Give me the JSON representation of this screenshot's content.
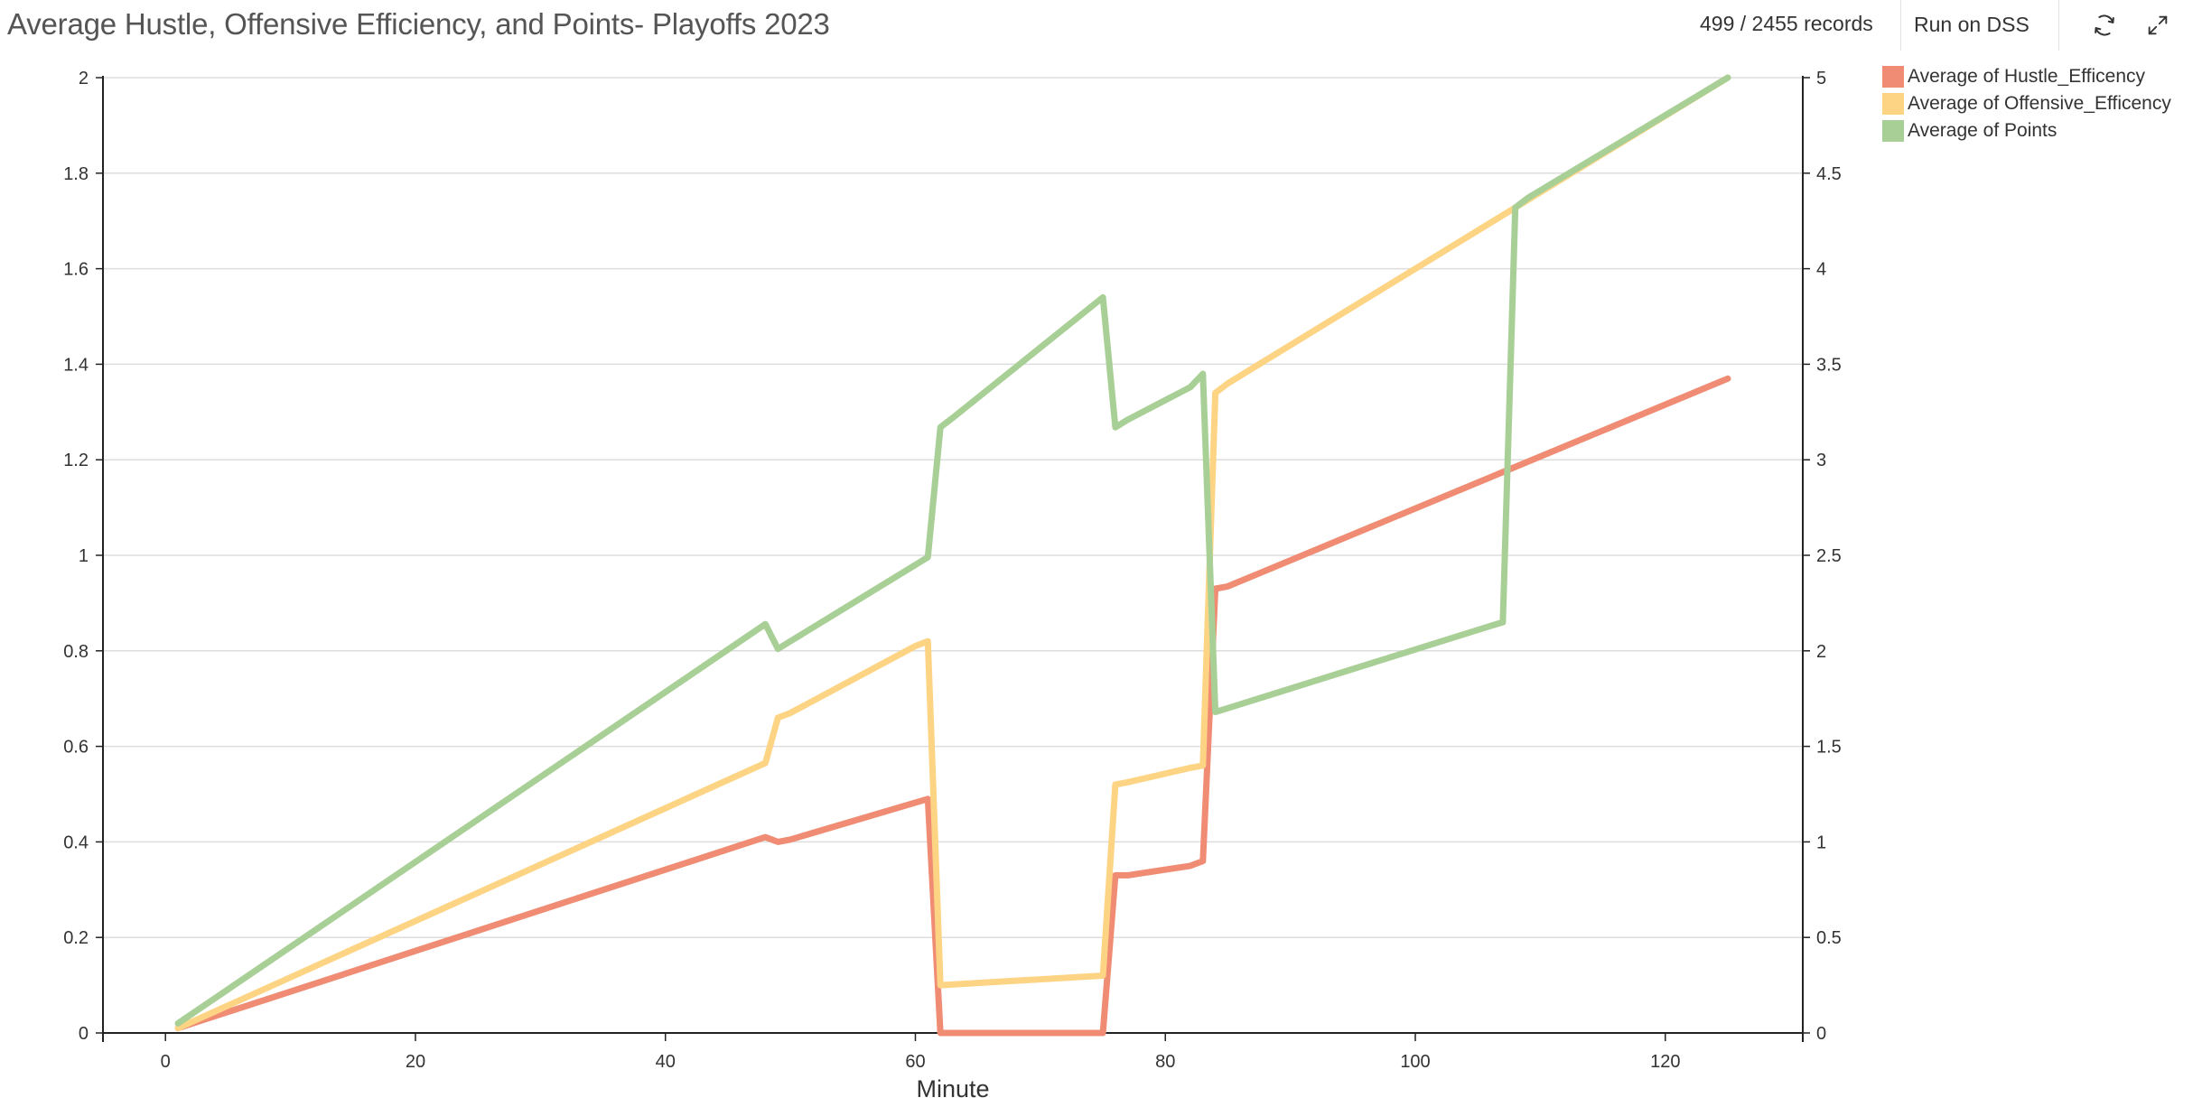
{
  "header": {
    "title": "Average Hustle, Offensive Efficiency, and Points- Playoffs 2023",
    "records": "499 / 2455 records",
    "run_label": "Run on DSS",
    "icons": [
      "refresh-icon",
      "expand-icon"
    ]
  },
  "colors": {
    "hustle": "#F08C74",
    "offensive": "#FDD484",
    "points": "#A8D096",
    "grid": "#dddddd",
    "axis": "#222222"
  },
  "legend": [
    {
      "label": "Average of Hustle_Efficency",
      "color": "#F08C74"
    },
    {
      "label": "Average of Offensive_Efficency",
      "color": "#FDD484"
    },
    {
      "label": "Average of Points",
      "color": "#A8D096"
    }
  ],
  "chart_data": {
    "type": "line",
    "title": "Average Hustle, Offensive Efficiency, and Points- Playoffs 2023",
    "xlabel": "Minute",
    "ylabel": "",
    "y2label": "",
    "xlim": [
      -5,
      131
    ],
    "ylim": [
      0,
      2
    ],
    "y2lim": [
      0,
      5
    ],
    "xticks": [
      0,
      20,
      40,
      60,
      80,
      100,
      120
    ],
    "yticks": [
      0,
      0.2,
      0.4,
      0.6,
      0.8,
      1,
      1.2,
      1.4,
      1.6,
      1.8,
      2
    ],
    "y2ticks": [
      0,
      0.5,
      1,
      1.5,
      2,
      2.5,
      3,
      3.5,
      4,
      4.5,
      5
    ],
    "ytick_labels": [
      "0",
      "0.2",
      "0.4",
      "0.6",
      "0.8",
      "1",
      "1.2",
      "1.4",
      "1.6",
      "1.8",
      "2"
    ],
    "y2tick_labels": [
      "0",
      "0.5",
      "1",
      "1.5",
      "2",
      "2.5",
      "3",
      "3.5",
      "4",
      "4.5",
      "5"
    ],
    "xtick_labels": [
      "0",
      "20",
      "40",
      "60",
      "80",
      "100",
      "120"
    ],
    "grid": true,
    "legend_position": "top-right",
    "series": [
      {
        "name": "Average of Hustle_Efficency",
        "axis": "left",
        "x": [
          1,
          48,
          49,
          50,
          61,
          62,
          75,
          76,
          77,
          82,
          83,
          84,
          85,
          125
        ],
        "y": [
          0.01,
          0.41,
          0.4,
          0.405,
          0.49,
          0.0,
          0.0,
          0.33,
          0.33,
          0.35,
          0.36,
          0.93,
          0.935,
          1.37
        ]
      },
      {
        "name": "Average of Offensive_Efficency",
        "axis": "left",
        "x": [
          1,
          48,
          49,
          50,
          60,
          61,
          62,
          75,
          76,
          77,
          82,
          83,
          84,
          85,
          125
        ],
        "y": [
          0.01,
          0.565,
          0.66,
          0.67,
          0.81,
          0.82,
          0.1,
          0.12,
          0.52,
          0.525,
          0.555,
          0.56,
          1.34,
          1.36,
          2.0
        ]
      },
      {
        "name": "Average of Points",
        "axis": "right",
        "x": [
          1,
          48,
          49,
          50,
          60,
          61,
          62,
          63,
          75,
          76,
          77,
          82,
          83,
          84,
          85,
          106,
          107,
          108,
          109,
          125
        ],
        "y": [
          0.05,
          2.14,
          2.01,
          2.05,
          2.45,
          2.49,
          3.17,
          3.22,
          3.85,
          3.17,
          3.21,
          3.38,
          3.45,
          1.68,
          1.7,
          2.13,
          2.15,
          4.32,
          4.37,
          5.0
        ]
      }
    ]
  }
}
